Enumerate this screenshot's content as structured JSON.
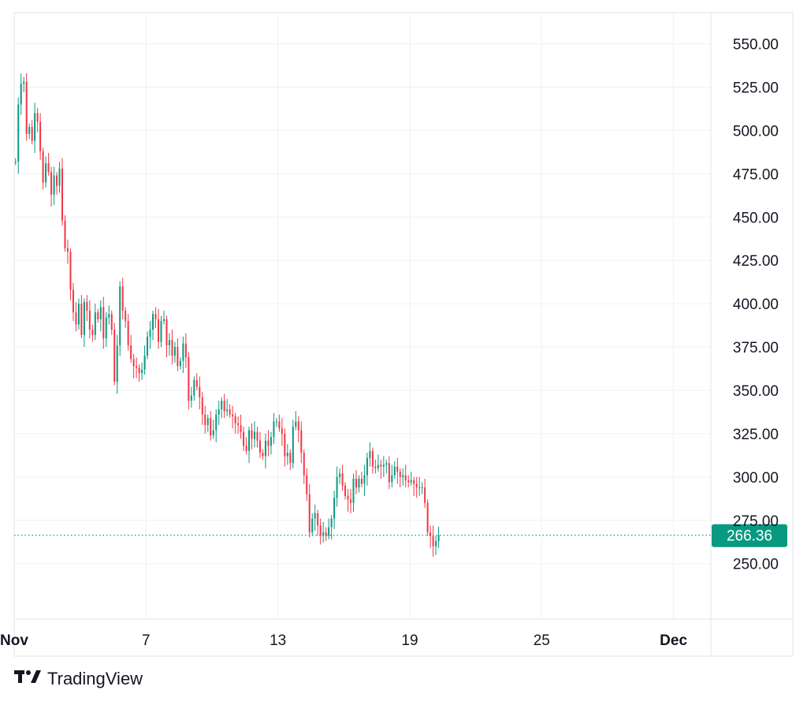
{
  "brand": {
    "logo_icon": "tradingview-logo-icon",
    "name": "TradingView"
  },
  "colors": {
    "up": "#089981",
    "down": "#f23645",
    "grid": "#eef0f3",
    "axis_border": "#e0e3eb",
    "last_price_line": "#089981",
    "text": "#131722"
  },
  "chart_data": {
    "type": "candlestick",
    "y_axis_side": "right",
    "ylim": [
      218,
      568
    ],
    "y_ticks": [
      250,
      275,
      300,
      325,
      350,
      375,
      400,
      425,
      450,
      475,
      500,
      525,
      550
    ],
    "y_tick_labels": [
      "250.00",
      "275.00",
      "300.00",
      "325.00",
      "350.00",
      "375.00",
      "400.00",
      "425.00",
      "450.00",
      "475.00",
      "500.00",
      "525.00",
      "550.00"
    ],
    "x_range_days": [
      1,
      32.7
    ],
    "x_ticks": [
      {
        "day": 1,
        "label": "Nov",
        "bold": true
      },
      {
        "day": 7,
        "label": "7",
        "bold": false
      },
      {
        "day": 13,
        "label": "13",
        "bold": false
      },
      {
        "day": 19,
        "label": "19",
        "bold": false
      },
      {
        "day": 25,
        "label": "25",
        "bold": false
      },
      {
        "day": 31,
        "label": "Dec",
        "bold": true
      }
    ],
    "last_price": 266.36,
    "last_price_label": "266.36",
    "candle_interval_days": 0.125,
    "closes": [
      482,
      515,
      527,
      528,
      498,
      502,
      494,
      510,
      505,
      488,
      470,
      481,
      476,
      463,
      474,
      468,
      478,
      448,
      432,
      430,
      408,
      395,
      388,
      400,
      382,
      401,
      396,
      385,
      382,
      395,
      391,
      398,
      380,
      392,
      394,
      385,
      355,
      376,
      410,
      396,
      390,
      376,
      368,
      364,
      363,
      360,
      362,
      370,
      381,
      385,
      394,
      391,
      378,
      390,
      391,
      376,
      379,
      370,
      375,
      364,
      367,
      377,
      369,
      344,
      347,
      356,
      352,
      346,
      336,
      330,
      334,
      324,
      327,
      336,
      339,
      344,
      338,
      339,
      336,
      335,
      331,
      330,
      326,
      318,
      315,
      327,
      322,
      326,
      321,
      314,
      312,
      321,
      318,
      323,
      332,
      332,
      328,
      325,
      312,
      314,
      308,
      329,
      332,
      327,
      314,
      301,
      290,
      268,
      276,
      279,
      272,
      266,
      268,
      266,
      271,
      276,
      288,
      300,
      302,
      295,
      289,
      287,
      285,
      299,
      294,
      299,
      296,
      301,
      311,
      315,
      306,
      305,
      307,
      306,
      307,
      308,
      297,
      301,
      306,
      303,
      300,
      301,
      298,
      297,
      298,
      296,
      294,
      294,
      294,
      285,
      268,
      266,
      260,
      263,
      266.36
    ],
    "opens_at_start": 482
  }
}
